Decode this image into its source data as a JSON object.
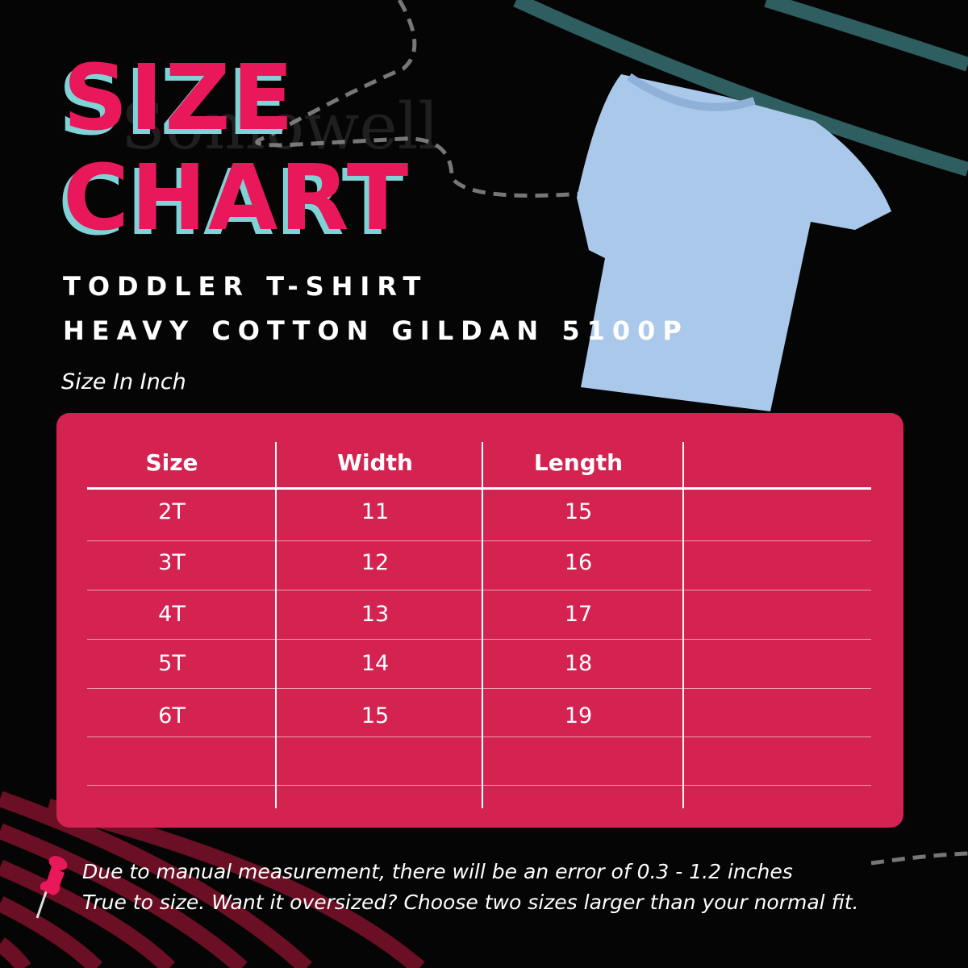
{
  "title": {
    "line1": "SIZE",
    "line2": "CHART"
  },
  "product": {
    "line1": "TODDLER T-SHIRT",
    "line2": "HEAVY COTTON GILDAN 5100P"
  },
  "unit_label": "Size In Inch",
  "watermark": "Somowell",
  "colors": {
    "background": "#050505",
    "accent": "#d42251",
    "title": "#e8185a",
    "title_shadow": "#7fd3d6",
    "shirt": "#a9c8ea",
    "stripe_teal": "#2e5e60"
  },
  "table": {
    "headers": [
      "Size",
      "Width",
      "Length",
      ""
    ],
    "rows": [
      [
        "2T",
        "11",
        "15"
      ],
      [
        "3T",
        "12",
        "16"
      ],
      [
        "4T",
        "13",
        "17"
      ],
      [
        "5T",
        "14",
        "18"
      ],
      [
        "6T",
        "15",
        "19"
      ]
    ]
  },
  "notes": [
    "Due to manual measurement, there will be an error of 0.3 - 1.2 inches",
    "True to size. Want it oversized? Choose two sizes larger than your normal fit."
  ],
  "icons": {
    "pin": "pushpin-icon"
  }
}
